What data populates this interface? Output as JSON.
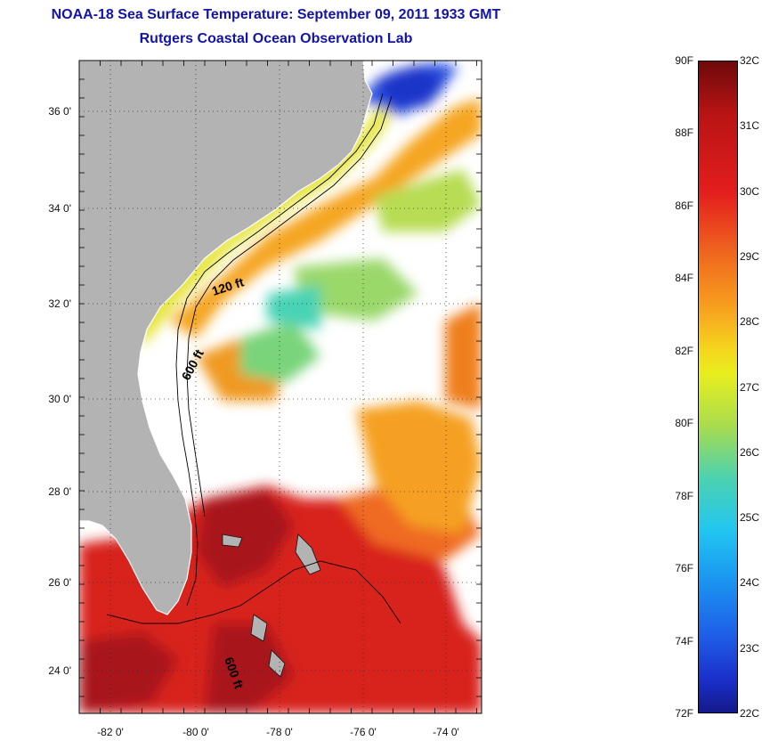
{
  "title": "NOAA-18 Sea Surface Temperature:  September 09, 2011 1933 GMT",
  "subtitle": "Rutgers Coastal Ocean Observation Lab",
  "map": {
    "lon_ticks": [
      "-82 0'",
      "-80 0'",
      "-78 0'",
      "-76 0'",
      "-74 0'"
    ],
    "lat_ticks": [
      "36 0'",
      "34 0'",
      "32 0'",
      "30 0'",
      "28 0'",
      "26 0'",
      "24 0'"
    ],
    "isobath_labels": [
      "120 ft",
      "600 ft",
      "600 ft"
    ],
    "colors": {
      "land": "#b3b3b3",
      "no_data": "#ffffff",
      "warm": "#d8231c",
      "hot": "#9c0f10",
      "orange": "#f29a24",
      "yellow": "#f2e51e",
      "green": "#8fd35a",
      "cold": "#1b3fd6"
    }
  },
  "colorbar": {
    "fahrenheit_labels": [
      "90F",
      "88F",
      "86F",
      "84F",
      "82F",
      "80F",
      "78F",
      "76F",
      "74F",
      "72F"
    ],
    "celsius_labels": [
      "32C",
      "31C",
      "30C",
      "29C",
      "28C",
      "27C",
      "26C",
      "25C",
      "24C",
      "23C",
      "22C"
    ],
    "range_c": [
      22,
      32
    ],
    "range_f": [
      72,
      90
    ]
  }
}
